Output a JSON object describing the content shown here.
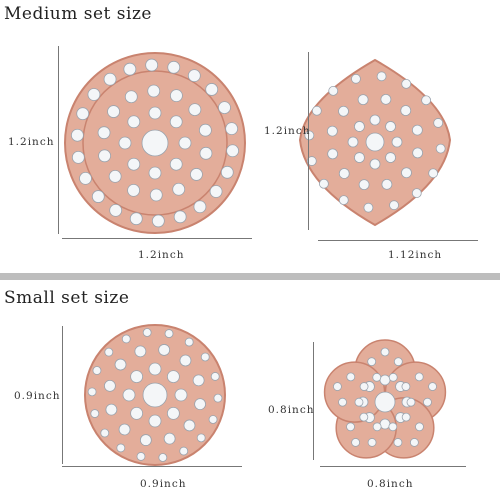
{
  "sections": {
    "medium_title": "Medium set size",
    "small_title": "Small set size"
  },
  "dimensions": {
    "medium_round_height": "1.2inch",
    "medium_round_width": "1.2inch",
    "medium_diamond_height": "1.2inch",
    "medium_diamond_width": "1.12inch",
    "small_cluster_height": "0.9inch",
    "small_cluster_width": "0.9inch",
    "small_flower_height": "0.8inch",
    "small_flower_width": "0.8inch"
  },
  "colors": {
    "rose_gold": "#e3ad9a",
    "rose_gold_dark": "#c9836f",
    "crystal": "#f4f6f8",
    "crystal_edge": "#9aa3ad",
    "divider": "#bdbdbd"
  }
}
